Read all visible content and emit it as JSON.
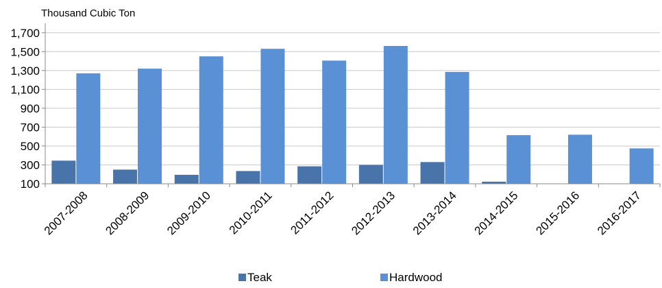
{
  "chart_data": {
    "type": "bar",
    "ylabel": "Thousand Cubic  Ton",
    "categories": [
      "2007-2008",
      "2008-2009",
      "2009-2010",
      "2010-2011",
      "2011-2012",
      "2012-2013",
      "2013-2014",
      "2014-2015",
      "2015-2016",
      "2016-2017"
    ],
    "series": [
      {
        "name": "Teak",
        "color": "#4874aa",
        "values": [
          345,
          250,
          195,
          235,
          285,
          300,
          330,
          122,
          null,
          null
        ]
      },
      {
        "name": "Hardwood",
        "color": "#5a91d4",
        "values": [
          1270,
          1320,
          1450,
          1530,
          1405,
          1560,
          1285,
          615,
          620,
          475
        ]
      }
    ],
    "yticks": [
      100,
      300,
      500,
      700,
      900,
      1100,
      1300,
      1500,
      1700
    ],
    "ytick_labels": [
      "100",
      "300",
      "500",
      "700",
      "900",
      "1,100",
      "1,300",
      "1,500",
      "1,700"
    ],
    "ylim": [
      100,
      1800
    ],
    "grid": "horizontal",
    "legend": "bottom"
  }
}
